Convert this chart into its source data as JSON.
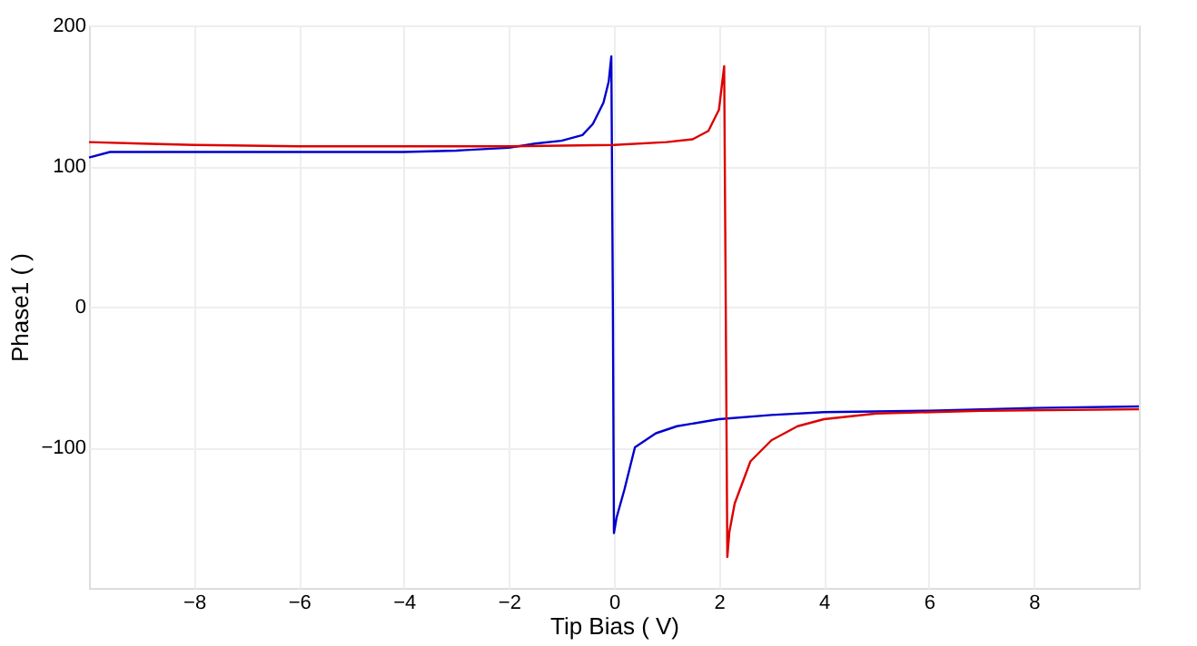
{
  "chart_data": {
    "type": "line",
    "xlabel": "Tip Bias ( V)",
    "ylabel": "Phase1 ( )",
    "xlim": [
      -10,
      10
    ],
    "xticks": [
      -8,
      -6,
      -4,
      -2,
      0,
      2,
      4,
      6,
      8
    ],
    "ylim": [
      -200,
      200
    ],
    "yticks": [
      -100,
      0,
      100,
      200
    ],
    "grid": true,
    "marker": "none",
    "line_style": "solid",
    "series": [
      {
        "color": "#0000cc",
        "x": [
          -10,
          -9.6,
          -9,
          -8,
          -6,
          -4,
          -3,
          -2,
          -1.5,
          -1,
          -0.6,
          -0.4,
          -0.2,
          -0.1,
          -0.05,
          -0.02,
          0.0,
          0.05,
          0.2,
          0.4,
          0.8,
          1.2,
          2,
          3,
          4,
          6,
          8,
          10
        ],
        "values": [
          106,
          110,
          110,
          110,
          110,
          110,
          111,
          113,
          116,
          118,
          122,
          130,
          145,
          160,
          178,
          0,
          -161,
          -150,
          -130,
          -100,
          -90,
          -85,
          -80,
          -77,
          -75,
          -74,
          -72,
          -71
        ]
      },
      {
        "color": "#dd0000",
        "x": [
          -10,
          -9,
          -8,
          -6,
          -4,
          -2,
          0,
          1,
          1.5,
          1.8,
          2.0,
          2.1,
          2.13,
          2.16,
          2.2,
          2.3,
          2.6,
          3,
          3.5,
          4,
          5,
          7,
          10
        ],
        "values": [
          117,
          116,
          115,
          114,
          114,
          114,
          115,
          117,
          119,
          125,
          140,
          171,
          0,
          -178,
          -160,
          -140,
          -110,
          -95,
          -85,
          -80,
          -76,
          -74,
          -73
        ]
      }
    ]
  }
}
